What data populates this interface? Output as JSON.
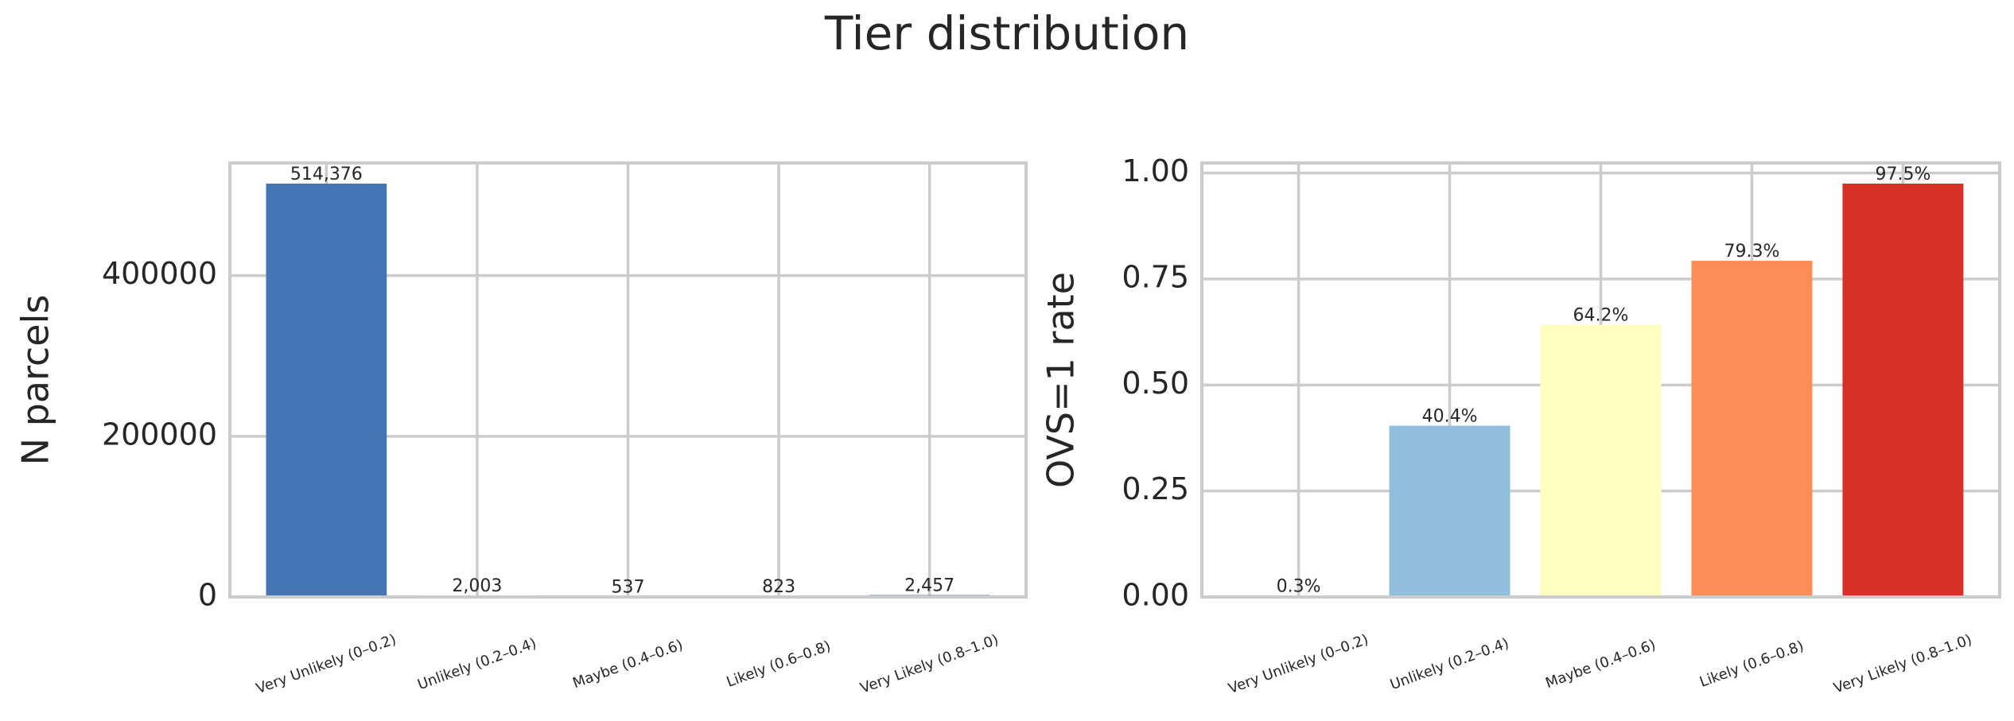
{
  "title": "Tier distribution",
  "chart_data": [
    {
      "type": "bar",
      "ylabel": "N parcels",
      "categories": [
        "Very Unlikely (0–0.2)",
        "Unlikely (0.2–0.4)",
        "Maybe (0.4–0.6)",
        "Likely (0.6–0.8)",
        "Very Likely (0.8–1.0)"
      ],
      "values": [
        514376,
        2003,
        537,
        823,
        2457
      ],
      "value_labels": [
        "514,376",
        "2,003",
        "537",
        "823",
        "2,457"
      ],
      "colors": [
        "#4575b4",
        "#4575b4",
        "#4575b4",
        "#4575b4",
        "#4575b4"
      ],
      "ylim": [
        0,
        540095
      ],
      "yticks": [
        0,
        200000,
        400000
      ],
      "grid": true
    },
    {
      "type": "bar",
      "ylabel": "OVS=1 rate",
      "categories": [
        "Very Unlikely (0–0.2)",
        "Unlikely (0.2–0.4)",
        "Maybe (0.4–0.6)",
        "Likely (0.6–0.8)",
        "Very Likely (0.8–1.0)"
      ],
      "values": [
        0.003,
        0.404,
        0.642,
        0.793,
        0.975
      ],
      "value_labels": [
        "0.3%",
        "40.4%",
        "64.2%",
        "79.3%",
        "97.5%"
      ],
      "colors": [
        "#4575b4",
        "#91bfdb",
        "#ffffbf",
        "#fc8d59",
        "#d73027"
      ],
      "ylim": [
        0,
        1.02375
      ],
      "yticks": [
        {
          "value": 0,
          "label": "0.00"
        },
        {
          "value": 0.25,
          "label": "0.25"
        },
        {
          "value": 0.5,
          "label": "0.50"
        },
        {
          "value": 0.75,
          "label": "0.75"
        },
        {
          "value": 1,
          "label": "1.00"
        }
      ],
      "grid": true
    }
  ]
}
